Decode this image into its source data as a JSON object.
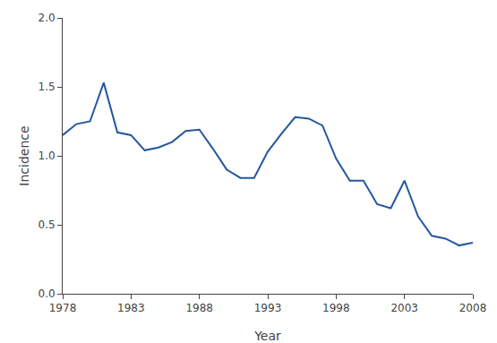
{
  "chart_data": {
    "type": "line",
    "x": [
      1978,
      1979,
      1980,
      1981,
      1982,
      1983,
      1984,
      1985,
      1986,
      1987,
      1988,
      1989,
      1990,
      1991,
      1992,
      1993,
      1994,
      1995,
      1996,
      1997,
      1998,
      1999,
      2000,
      2001,
      2002,
      2003,
      2004,
      2005,
      2006,
      2007,
      2008
    ],
    "values": [
      1.15,
      1.23,
      1.25,
      1.53,
      1.17,
      1.15,
      1.04,
      1.06,
      1.1,
      1.18,
      1.19,
      1.05,
      0.9,
      0.84,
      0.84,
      1.03,
      1.16,
      1.28,
      1.27,
      1.22,
      0.98,
      0.82,
      0.82,
      0.65,
      0.62,
      0.82,
      0.56,
      0.42,
      0.4,
      0.35,
      0.37
    ],
    "color": "#2457A0",
    "xlabel": "Year",
    "ylabel": "Incidence",
    "xlim": [
      1978,
      2008
    ],
    "ylim": [
      0.0,
      2.0
    ],
    "xticks": [
      1978,
      1983,
      1988,
      1993,
      1998,
      2003,
      2008
    ],
    "yticks": [
      {
        "value": 0.0,
        "label": "0.0"
      },
      0.5,
      {
        "value": 1.0,
        "label": "1.0"
      },
      1.5,
      {
        "value": 2.0,
        "label": "2.0"
      }
    ],
    "grid": false
  }
}
